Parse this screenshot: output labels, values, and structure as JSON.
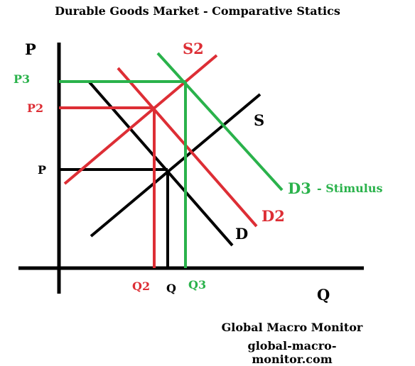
{
  "title": "Durable Goods Market - Comparative Statics",
  "axes": {
    "y_label": "P",
    "x_label": "Q"
  },
  "price_levels": [
    "P3",
    "P2",
    "P"
  ],
  "quantity_levels": [
    "Q2",
    "Q",
    "Q3"
  ],
  "curves": {
    "supply": "S",
    "supply_shifted": "S2",
    "demand": "D",
    "demand_shifted": "D2",
    "demand_stimulus": "D3",
    "demand_stimulus_note": "- Stimulus"
  },
  "colors": {
    "black": "#000000",
    "red": "#dd2e35",
    "green": "#2ab24b"
  },
  "credit": {
    "name": "Global Macro Monitor",
    "url": "global-macro-monitor.com"
  }
}
